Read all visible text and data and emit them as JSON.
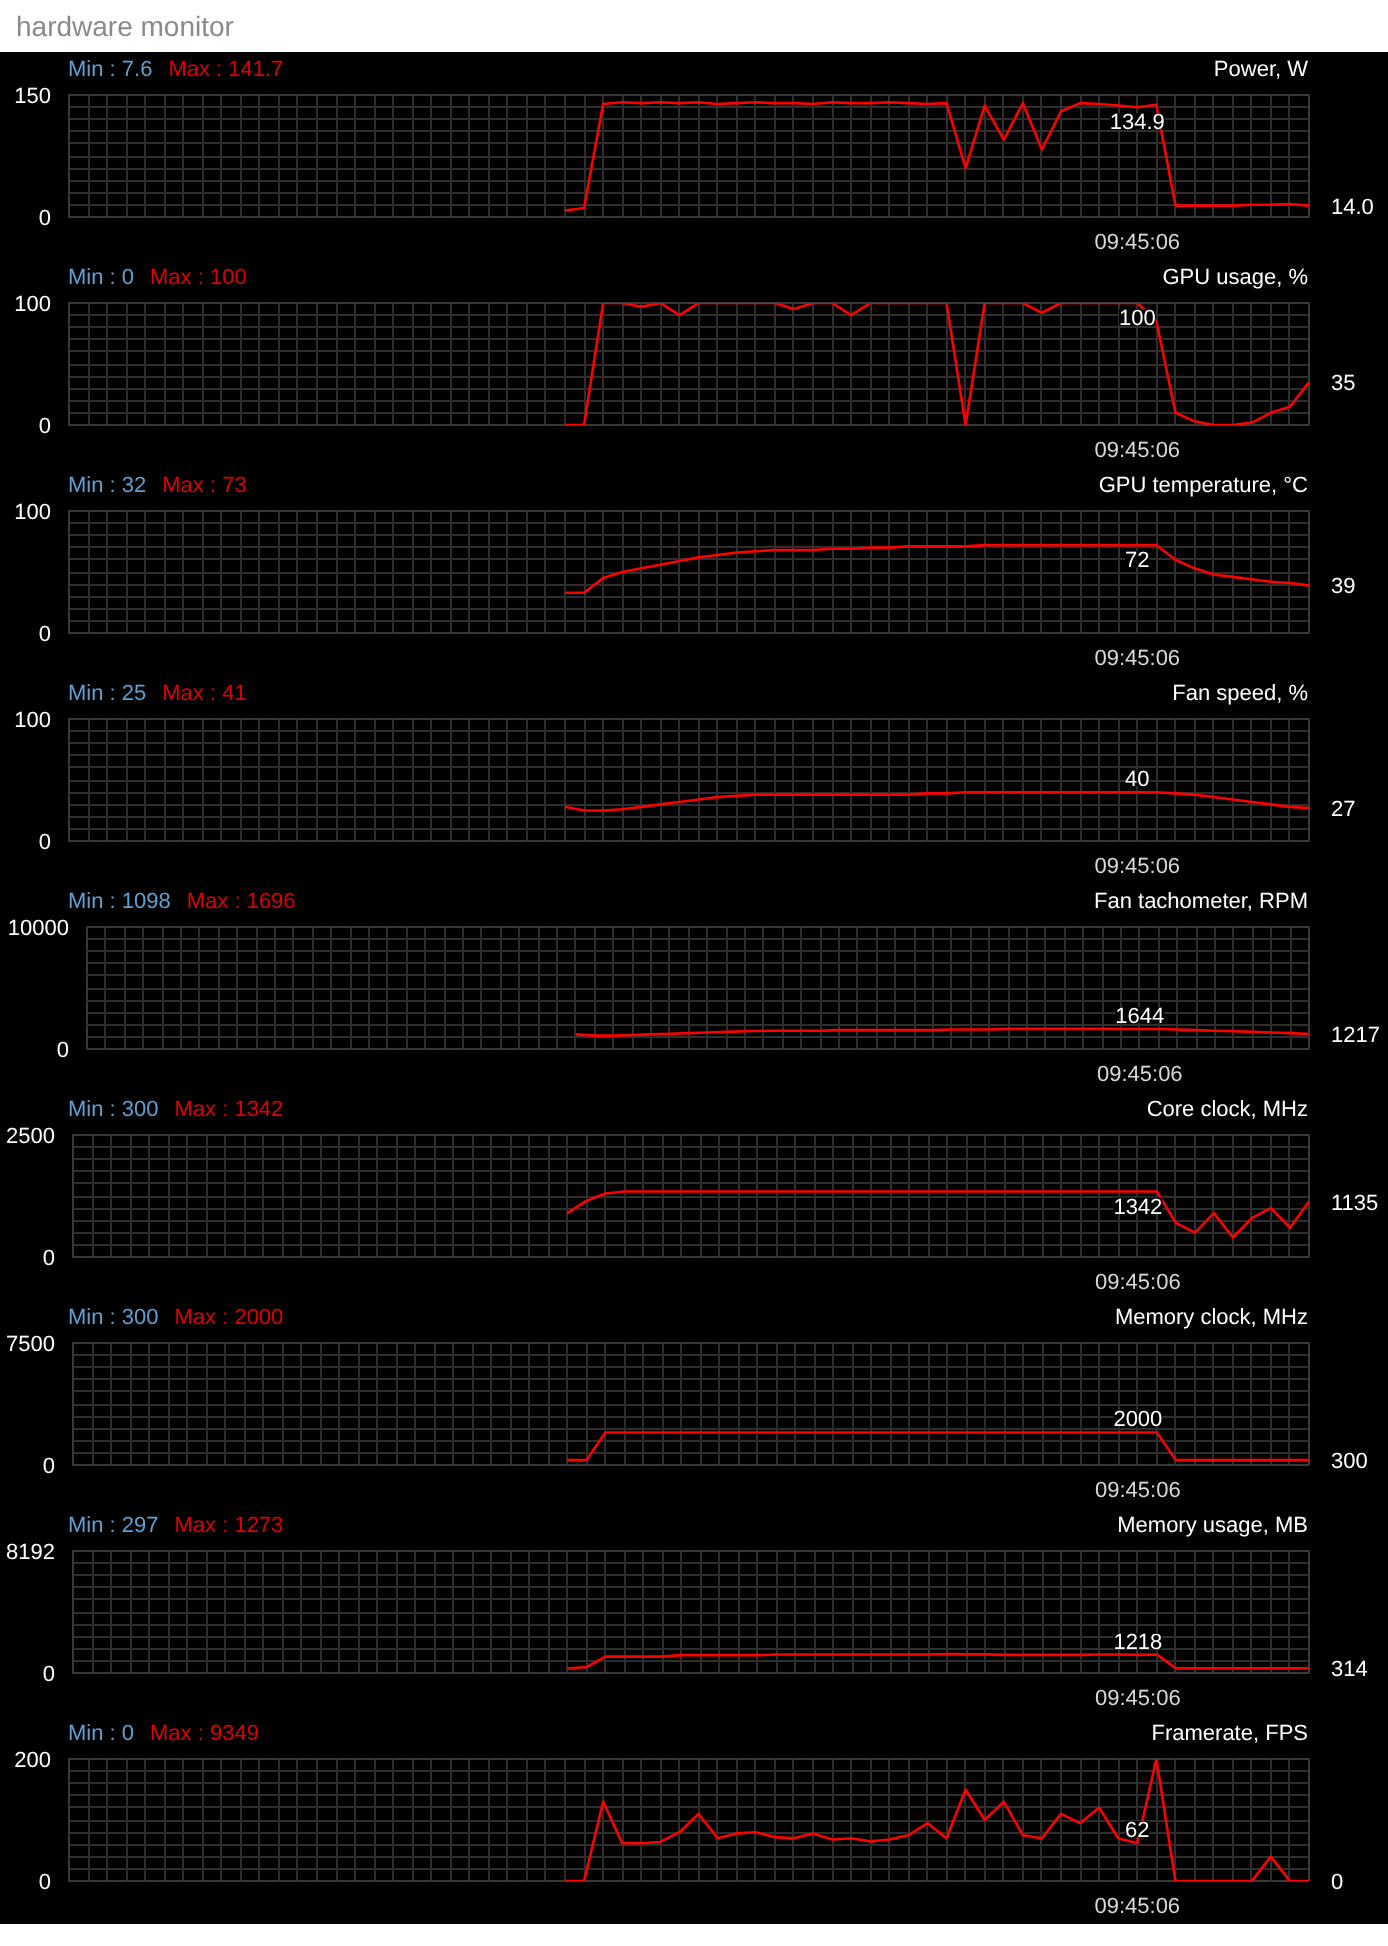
{
  "chart_data": [
    {
      "type": "line",
      "subtitle": "hardware monitor",
      "title": "Power, W",
      "annotations": [
        "Min : 7.6",
        "Max : 141.7",
        "09:45:06"
      ],
      "ylim": [
        0,
        150
      ],
      "yticks": [
        0,
        150
      ],
      "grid": true,
      "tick_labels": "y",
      "categories": [
        null,
        null,
        null,
        null,
        null,
        null,
        null,
        null,
        null,
        null,
        null,
        null,
        null,
        null,
        null,
        null,
        null,
        null,
        null,
        null,
        null,
        null,
        null,
        null,
        null,
        null,
        null,
        null,
        null,
        null,
        null,
        null,
        null,
        null,
        null,
        null,
        null,
        null,
        null,
        null,
        null,
        null,
        null,
        null,
        null,
        null,
        null,
        null,
        null,
        null,
        null,
        null,
        null,
        null,
        null,
        null,
        null,
        null,
        null,
        null,
        null,
        null,
        null,
        null,
        null,
        null
      ],
      "series": [
        {
          "color": "#ff0000",
          "values": [
            null,
            null,
            null,
            null,
            null,
            null,
            null,
            null,
            null,
            null,
            null,
            null,
            null,
            null,
            null,
            null,
            null,
            null,
            null,
            null,
            null,
            null,
            null,
            null,
            null,
            null,
            8,
            11,
            139,
            141,
            140,
            141,
            140,
            141,
            139,
            140,
            141,
            140,
            140,
            139,
            141,
            140,
            140,
            141,
            140,
            139,
            140,
            60,
            137,
            95,
            140,
            83,
            130,
            140,
            139,
            137,
            134.9,
            138,
            14,
            14,
            14,
            14,
            15,
            15,
            16,
            14.0
          ],
          "value_labels": [
            null,
            null,
            null,
            null,
            null,
            null,
            null,
            null,
            null,
            null,
            null,
            null,
            null,
            null,
            null,
            null,
            null,
            null,
            null,
            null,
            null,
            null,
            null,
            null,
            null,
            null,
            null,
            null,
            null,
            null,
            null,
            null,
            null,
            null,
            null,
            null,
            null,
            null,
            null,
            null,
            null,
            null,
            null,
            null,
            null,
            null,
            null,
            null,
            null,
            null,
            null,
            null,
            null,
            null,
            null,
            null,
            "134.9",
            null,
            null,
            null,
            null,
            null,
            null,
            null,
            null,
            "14.0"
          ]
        }
      ]
    },
    {
      "type": "line",
      "title": "GPU usage, %",
      "annotations": [
        "Min : 0",
        "Max : 100",
        "09:45:06"
      ],
      "ylim": [
        0,
        100
      ],
      "yticks": [
        0,
        100
      ],
      "grid": true,
      "tick_labels": "y",
      "categories": [
        null,
        null,
        null,
        null,
        null,
        null,
        null,
        null,
        null,
        null,
        null,
        null,
        null,
        null,
        null,
        null,
        null,
        null,
        null,
        null,
        null,
        null,
        null,
        null,
        null,
        null,
        null,
        null,
        null,
        null,
        null,
        null,
        null,
        null,
        null,
        null,
        null,
        null,
        null,
        null,
        null,
        null,
        null,
        null,
        null,
        null,
        null,
        null,
        null,
        null,
        null,
        null,
        null,
        null,
        null,
        null,
        null,
        null,
        null,
        null,
        null,
        null,
        null,
        null,
        null,
        null
      ],
      "series": [
        {
          "color": "#ff0000",
          "values": [
            null,
            null,
            null,
            null,
            null,
            null,
            null,
            null,
            null,
            null,
            null,
            null,
            null,
            null,
            null,
            null,
            null,
            null,
            null,
            null,
            null,
            null,
            null,
            null,
            null,
            null,
            0,
            0,
            100,
            100,
            97,
            100,
            90,
            100,
            100,
            100,
            100,
            100,
            95,
            100,
            100,
            90,
            100,
            100,
            100,
            100,
            100,
            0,
            100,
            100,
            100,
            92,
            100,
            100,
            100,
            100,
            100,
            85,
            10,
            3,
            0,
            0,
            2,
            10,
            15,
            35
          ],
          "value_labels": [
            null,
            null,
            null,
            null,
            null,
            null,
            null,
            null,
            null,
            null,
            null,
            null,
            null,
            null,
            null,
            null,
            null,
            null,
            null,
            null,
            null,
            null,
            null,
            null,
            null,
            null,
            null,
            null,
            null,
            null,
            null,
            null,
            null,
            null,
            null,
            null,
            null,
            null,
            null,
            null,
            null,
            null,
            null,
            null,
            null,
            null,
            null,
            null,
            null,
            null,
            null,
            null,
            null,
            null,
            null,
            null,
            "100",
            null,
            null,
            null,
            null,
            null,
            null,
            null,
            null,
            "35"
          ]
        }
      ]
    },
    {
      "type": "line",
      "title": "GPU temperature, °C",
      "annotations": [
        "Min : 32",
        "Max : 73",
        "09:45:06"
      ],
      "ylim": [
        0,
        100
      ],
      "yticks": [
        0,
        100
      ],
      "grid": true,
      "tick_labels": "y",
      "categories": [
        null,
        null,
        null,
        null,
        null,
        null,
        null,
        null,
        null,
        null,
        null,
        null,
        null,
        null,
        null,
        null,
        null,
        null,
        null,
        null,
        null,
        null,
        null,
        null,
        null,
        null,
        null,
        null,
        null,
        null,
        null,
        null,
        null,
        null,
        null,
        null,
        null,
        null,
        null,
        null,
        null,
        null,
        null,
        null,
        null,
        null,
        null,
        null,
        null,
        null,
        null,
        null,
        null,
        null,
        null,
        null,
        null,
        null,
        null,
        null,
        null,
        null,
        null,
        null,
        null,
        null
      ],
      "series": [
        {
          "color": "#ff0000",
          "values": [
            null,
            null,
            null,
            null,
            null,
            null,
            null,
            null,
            null,
            null,
            null,
            null,
            null,
            null,
            null,
            null,
            null,
            null,
            null,
            null,
            null,
            null,
            null,
            null,
            null,
            null,
            33,
            33,
            45,
            50,
            53,
            56,
            59,
            62,
            64,
            66,
            67,
            68,
            68,
            68,
            69,
            69,
            70,
            70,
            71,
            71,
            71,
            71,
            72,
            72,
            72,
            72,
            72,
            72,
            72,
            72,
            72,
            72,
            60,
            53,
            48,
            46,
            44,
            42,
            41,
            39
          ],
          "value_labels": [
            null,
            null,
            null,
            null,
            null,
            null,
            null,
            null,
            null,
            null,
            null,
            null,
            null,
            null,
            null,
            null,
            null,
            null,
            null,
            null,
            null,
            null,
            null,
            null,
            null,
            null,
            null,
            null,
            null,
            null,
            null,
            null,
            null,
            null,
            null,
            null,
            null,
            null,
            null,
            null,
            null,
            null,
            null,
            null,
            null,
            null,
            null,
            null,
            null,
            null,
            null,
            null,
            null,
            null,
            null,
            null,
            "72",
            null,
            null,
            null,
            null,
            null,
            null,
            null,
            null,
            "39"
          ]
        }
      ]
    },
    {
      "type": "line",
      "title": "Fan speed, %",
      "annotations": [
        "Min : 25",
        "Max : 41",
        "09:45:06"
      ],
      "ylim": [
        0,
        100
      ],
      "yticks": [
        0,
        100
      ],
      "grid": true,
      "tick_labels": "y",
      "categories": [
        null,
        null,
        null,
        null,
        null,
        null,
        null,
        null,
        null,
        null,
        null,
        null,
        null,
        null,
        null,
        null,
        null,
        null,
        null,
        null,
        null,
        null,
        null,
        null,
        null,
        null,
        null,
        null,
        null,
        null,
        null,
        null,
        null,
        null,
        null,
        null,
        null,
        null,
        null,
        null,
        null,
        null,
        null,
        null,
        null,
        null,
        null,
        null,
        null,
        null,
        null,
        null,
        null,
        null,
        null,
        null,
        null,
        null,
        null,
        null,
        null,
        null,
        null,
        null,
        null,
        null
      ],
      "series": [
        {
          "color": "#ff0000",
          "values": [
            null,
            null,
            null,
            null,
            null,
            null,
            null,
            null,
            null,
            null,
            null,
            null,
            null,
            null,
            null,
            null,
            null,
            null,
            null,
            null,
            null,
            null,
            null,
            null,
            null,
            null,
            28,
            25,
            25,
            26,
            28,
            30,
            32,
            34,
            36,
            37,
            38,
            38,
            38,
            38,
            38,
            38,
            38,
            38,
            38,
            39,
            39,
            40,
            40,
            40,
            40,
            40,
            40,
            40,
            40,
            40,
            40,
            40,
            39,
            38,
            36,
            34,
            32,
            30,
            28,
            27
          ],
          "value_labels": [
            null,
            null,
            null,
            null,
            null,
            null,
            null,
            null,
            null,
            null,
            null,
            null,
            null,
            null,
            null,
            null,
            null,
            null,
            null,
            null,
            null,
            null,
            null,
            null,
            null,
            null,
            null,
            null,
            null,
            null,
            null,
            null,
            null,
            null,
            null,
            null,
            null,
            null,
            null,
            null,
            null,
            null,
            null,
            null,
            null,
            null,
            null,
            null,
            null,
            null,
            null,
            null,
            null,
            null,
            null,
            null,
            "40",
            null,
            null,
            null,
            null,
            null,
            null,
            null,
            null,
            "27"
          ]
        }
      ]
    },
    {
      "type": "line",
      "title": "Fan tachometer, RPM",
      "annotations": [
        "Min : 1098",
        "Max : 1696",
        "09:45:06"
      ],
      "ylim": [
        0,
        10000
      ],
      "yticks": [
        0,
        10000
      ],
      "grid": true,
      "tick_labels": "y",
      "categories": [
        null,
        null,
        null,
        null,
        null,
        null,
        null,
        null,
        null,
        null,
        null,
        null,
        null,
        null,
        null,
        null,
        null,
        null,
        null,
        null,
        null,
        null,
        null,
        null,
        null,
        null,
        null,
        null,
        null,
        null,
        null,
        null,
        null,
        null,
        null,
        null,
        null,
        null,
        null,
        null,
        null,
        null,
        null,
        null,
        null,
        null,
        null,
        null,
        null,
        null,
        null,
        null,
        null,
        null,
        null,
        null,
        null,
        null,
        null,
        null,
        null,
        null,
        null,
        null,
        null,
        null
      ],
      "series": [
        {
          "color": "#ff0000",
          "values": [
            null,
            null,
            null,
            null,
            null,
            null,
            null,
            null,
            null,
            null,
            null,
            null,
            null,
            null,
            null,
            null,
            null,
            null,
            null,
            null,
            null,
            null,
            null,
            null,
            null,
            null,
            1200,
            1100,
            1100,
            1150,
            1200,
            1250,
            1300,
            1350,
            1400,
            1450,
            1500,
            1500,
            1500,
            1500,
            1550,
            1550,
            1550,
            1550,
            1550,
            1550,
            1600,
            1600,
            1600,
            1650,
            1650,
            1650,
            1650,
            1650,
            1650,
            1644,
            1644,
            1640,
            1600,
            1550,
            1500,
            1450,
            1400,
            1350,
            1300,
            1217
          ],
          "value_labels": [
            null,
            null,
            null,
            null,
            null,
            null,
            null,
            null,
            null,
            null,
            null,
            null,
            null,
            null,
            null,
            null,
            null,
            null,
            null,
            null,
            null,
            null,
            null,
            null,
            null,
            null,
            null,
            null,
            null,
            null,
            null,
            null,
            null,
            null,
            null,
            null,
            null,
            null,
            null,
            null,
            null,
            null,
            null,
            null,
            null,
            null,
            null,
            null,
            null,
            null,
            null,
            null,
            null,
            null,
            null,
            null,
            "1644",
            null,
            null,
            null,
            null,
            null,
            null,
            null,
            null,
            "1217"
          ]
        }
      ]
    },
    {
      "type": "line",
      "title": "Core clock, MHz",
      "annotations": [
        "Min : 300",
        "Max : 1342",
        "09:45:06"
      ],
      "ylim": [
        0,
        2500
      ],
      "yticks": [
        0,
        2500
      ],
      "grid": true,
      "tick_labels": "y",
      "categories": [
        null,
        null,
        null,
        null,
        null,
        null,
        null,
        null,
        null,
        null,
        null,
        null,
        null,
        null,
        null,
        null,
        null,
        null,
        null,
        null,
        null,
        null,
        null,
        null,
        null,
        null,
        null,
        null,
        null,
        null,
        null,
        null,
        null,
        null,
        null,
        null,
        null,
        null,
        null,
        null,
        null,
        null,
        null,
        null,
        null,
        null,
        null,
        null,
        null,
        null,
        null,
        null,
        null,
        null,
        null,
        null,
        null,
        null,
        null,
        null,
        null,
        null,
        null,
        null,
        null,
        null
      ],
      "series": [
        {
          "color": "#ff0000",
          "values": [
            null,
            null,
            null,
            null,
            null,
            null,
            null,
            null,
            null,
            null,
            null,
            null,
            null,
            null,
            null,
            null,
            null,
            null,
            null,
            null,
            null,
            null,
            null,
            null,
            null,
            null,
            900,
            1150,
            1300,
            1342,
            1342,
            1342,
            1342,
            1342,
            1342,
            1342,
            1342,
            1342,
            1342,
            1342,
            1342,
            1342,
            1342,
            1342,
            1342,
            1342,
            1342,
            1342,
            1342,
            1342,
            1342,
            1342,
            1342,
            1342,
            1342,
            1342,
            1342,
            1342,
            700,
            500,
            900,
            400,
            800,
            1000,
            600,
            1135
          ],
          "value_labels": [
            null,
            null,
            null,
            null,
            null,
            null,
            null,
            null,
            null,
            null,
            null,
            null,
            null,
            null,
            null,
            null,
            null,
            null,
            null,
            null,
            null,
            null,
            null,
            null,
            null,
            null,
            null,
            null,
            null,
            null,
            null,
            null,
            null,
            null,
            null,
            null,
            null,
            null,
            null,
            null,
            null,
            null,
            null,
            null,
            null,
            null,
            null,
            null,
            null,
            null,
            null,
            null,
            null,
            null,
            null,
            null,
            "1342",
            null,
            null,
            null,
            null,
            null,
            null,
            null,
            null,
            "1135"
          ]
        }
      ]
    },
    {
      "type": "line",
      "title": "Memory clock, MHz",
      "annotations": [
        "Min : 300",
        "Max : 2000",
        "09:45:06"
      ],
      "ylim": [
        0,
        7500
      ],
      "yticks": [
        0,
        7500
      ],
      "grid": true,
      "tick_labels": "y",
      "categories": [
        null,
        null,
        null,
        null,
        null,
        null,
        null,
        null,
        null,
        null,
        null,
        null,
        null,
        null,
        null,
        null,
        null,
        null,
        null,
        null,
        null,
        null,
        null,
        null,
        null,
        null,
        null,
        null,
        null,
        null,
        null,
        null,
        null,
        null,
        null,
        null,
        null,
        null,
        null,
        null,
        null,
        null,
        null,
        null,
        null,
        null,
        null,
        null,
        null,
        null,
        null,
        null,
        null,
        null,
        null,
        null,
        null,
        null,
        null,
        null,
        null,
        null,
        null,
        null,
        null,
        null
      ],
      "series": [
        {
          "color": "#ff0000",
          "values": [
            null,
            null,
            null,
            null,
            null,
            null,
            null,
            null,
            null,
            null,
            null,
            null,
            null,
            null,
            null,
            null,
            null,
            null,
            null,
            null,
            null,
            null,
            null,
            null,
            null,
            null,
            300,
            300,
            2000,
            2000,
            2000,
            2000,
            2000,
            2000,
            2000,
            2000,
            2000,
            2000,
            2000,
            2000,
            2000,
            2000,
            2000,
            2000,
            2000,
            2000,
            2000,
            2000,
            2000,
            2000,
            2000,
            2000,
            2000,
            2000,
            2000,
            2000,
            2000,
            2000,
            300,
            300,
            300,
            300,
            300,
            300,
            300,
            300
          ],
          "value_labels": [
            null,
            null,
            null,
            null,
            null,
            null,
            null,
            null,
            null,
            null,
            null,
            null,
            null,
            null,
            null,
            null,
            null,
            null,
            null,
            null,
            null,
            null,
            null,
            null,
            null,
            null,
            null,
            null,
            null,
            null,
            null,
            null,
            null,
            null,
            null,
            null,
            null,
            null,
            null,
            null,
            null,
            null,
            null,
            null,
            null,
            null,
            null,
            null,
            null,
            null,
            null,
            null,
            null,
            null,
            null,
            null,
            "2000",
            null,
            null,
            null,
            null,
            null,
            null,
            null,
            null,
            "300"
          ]
        }
      ]
    },
    {
      "type": "line",
      "title": "Memory usage, MB",
      "annotations": [
        "Min : 297",
        "Max : 1273",
        "09:45:06"
      ],
      "ylim": [
        0,
        8192
      ],
      "yticks": [
        0,
        8192
      ],
      "grid": true,
      "tick_labels": "y",
      "categories": [
        null,
        null,
        null,
        null,
        null,
        null,
        null,
        null,
        null,
        null,
        null,
        null,
        null,
        null,
        null,
        null,
        null,
        null,
        null,
        null,
        null,
        null,
        null,
        null,
        null,
        null,
        null,
        null,
        null,
        null,
        null,
        null,
        null,
        null,
        null,
        null,
        null,
        null,
        null,
        null,
        null,
        null,
        null,
        null,
        null,
        null,
        null,
        null,
        null,
        null,
        null,
        null,
        null,
        null,
        null,
        null,
        null,
        null,
        null,
        null,
        null,
        null,
        null,
        null,
        null,
        null
      ],
      "series": [
        {
          "color": "#ff0000",
          "values": [
            null,
            null,
            null,
            null,
            null,
            null,
            null,
            null,
            null,
            null,
            null,
            null,
            null,
            null,
            null,
            null,
            null,
            null,
            null,
            null,
            null,
            null,
            null,
            null,
            null,
            null,
            297,
            400,
            1100,
            1100,
            1100,
            1100,
            1200,
            1200,
            1200,
            1200,
            1200,
            1240,
            1240,
            1240,
            1240,
            1240,
            1240,
            1240,
            1240,
            1240,
            1273,
            1250,
            1250,
            1218,
            1218,
            1218,
            1218,
            1218,
            1240,
            1240,
            1218,
            1240,
            314,
            314,
            314,
            314,
            314,
            314,
            314,
            314
          ],
          "value_labels": [
            null,
            null,
            null,
            null,
            null,
            null,
            null,
            null,
            null,
            null,
            null,
            null,
            null,
            null,
            null,
            null,
            null,
            null,
            null,
            null,
            null,
            null,
            null,
            null,
            null,
            null,
            null,
            null,
            null,
            null,
            null,
            null,
            null,
            null,
            null,
            null,
            null,
            null,
            null,
            null,
            null,
            null,
            null,
            null,
            null,
            null,
            null,
            null,
            null,
            null,
            null,
            null,
            null,
            null,
            null,
            null,
            "1218",
            null,
            null,
            null,
            null,
            null,
            null,
            null,
            null,
            "314"
          ]
        }
      ]
    },
    {
      "type": "line",
      "title": "Framerate, FPS",
      "annotations": [
        "Min : 0",
        "Max : 9349",
        "09:45:06"
      ],
      "ylim": [
        0,
        200
      ],
      "yticks": [
        0,
        200
      ],
      "grid": true,
      "tick_labels": "y",
      "categories": [
        null,
        null,
        null,
        null,
        null,
        null,
        null,
        null,
        null,
        null,
        null,
        null,
        null,
        null,
        null,
        null,
        null,
        null,
        null,
        null,
        null,
        null,
        null,
        null,
        null,
        null,
        null,
        null,
        null,
        null,
        null,
        null,
        null,
        null,
        null,
        null,
        null,
        null,
        null,
        null,
        null,
        null,
        null,
        null,
        null,
        null,
        null,
        null,
        null,
        null,
        null,
        null,
        null,
        null,
        null,
        null,
        null,
        null,
        null,
        null,
        null,
        null,
        null,
        null,
        null,
        null
      ],
      "series": [
        {
          "color": "#ff0000",
          "values": [
            null,
            null,
            null,
            null,
            null,
            null,
            null,
            null,
            null,
            null,
            null,
            null,
            null,
            null,
            null,
            null,
            null,
            null,
            null,
            null,
            null,
            null,
            null,
            null,
            null,
            null,
            0,
            0,
            130,
            62,
            62,
            64,
            80,
            110,
            70,
            78,
            80,
            72,
            70,
            78,
            68,
            70,
            65,
            68,
            75,
            95,
            70,
            150,
            100,
            130,
            75,
            70,
            110,
            95,
            120,
            70,
            62,
            200,
            0,
            0,
            0,
            0,
            0,
            40,
            0,
            0
          ],
          "value_labels": [
            null,
            null,
            null,
            null,
            null,
            null,
            null,
            null,
            null,
            null,
            null,
            null,
            null,
            null,
            null,
            null,
            null,
            null,
            null,
            null,
            null,
            null,
            null,
            null,
            null,
            null,
            null,
            null,
            null,
            null,
            null,
            null,
            null,
            null,
            null,
            null,
            null,
            null,
            null,
            null,
            null,
            null,
            null,
            null,
            null,
            null,
            null,
            null,
            null,
            null,
            null,
            null,
            null,
            null,
            null,
            null,
            "62",
            null,
            null,
            null,
            null,
            null,
            null,
            null,
            null,
            "0"
          ]
        }
      ]
    }
  ]
}
